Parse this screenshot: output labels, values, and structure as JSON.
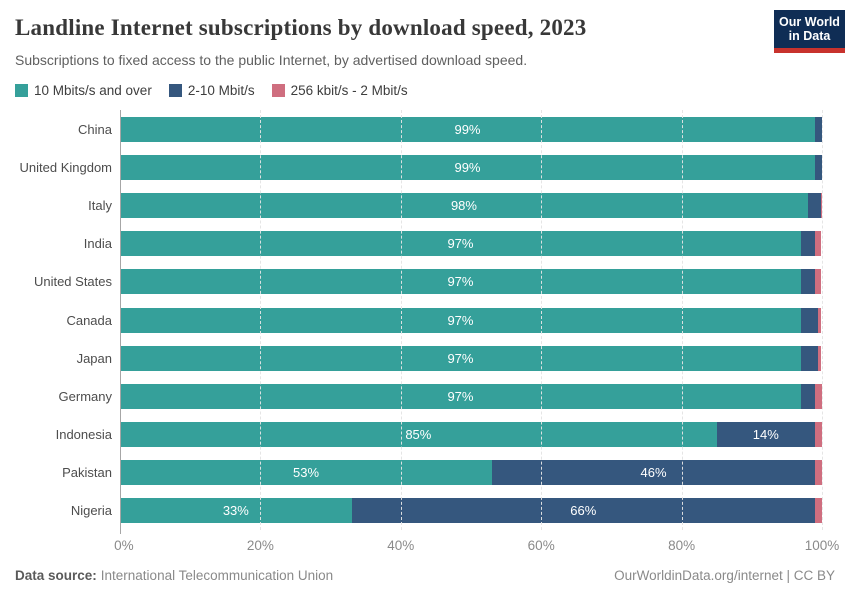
{
  "logo": {
    "line1": "Our World",
    "line2": "in Data",
    "bg": "#0f2d55",
    "stripe": "#c8322d"
  },
  "chart_data": {
    "type": "bar",
    "orientation": "horizontal",
    "stacked": true,
    "title": "Landline Internet subscriptions by download speed, 2023",
    "subtitle": "Subscriptions to fixed access to the public Internet, by advertised download speed.",
    "unit": "%",
    "xlim": [
      0,
      100
    ],
    "xticks": [
      "0%",
      "20%",
      "40%",
      "60%",
      "80%",
      "100%"
    ],
    "grid": true,
    "legend_position": "top-left",
    "legend": [
      {
        "label": "10 Mbits/s and over",
        "color": "#35a09a"
      },
      {
        "label": "2-10 Mbit/s",
        "color": "#35577e"
      },
      {
        "label": "256 kbit/s - 2 Mbit/s",
        "color": "#cf6e7f"
      }
    ],
    "rows": [
      {
        "country": "China",
        "segments": [
          {
            "value": 99,
            "label": "99%"
          },
          {
            "value": 1,
            "label": ""
          },
          {
            "value": 0,
            "label": ""
          }
        ]
      },
      {
        "country": "United Kingdom",
        "segments": [
          {
            "value": 99,
            "label": "99%"
          },
          {
            "value": 1,
            "label": ""
          },
          {
            "value": 0,
            "label": ""
          }
        ]
      },
      {
        "country": "Italy",
        "segments": [
          {
            "value": 98,
            "label": "98%"
          },
          {
            "value": 1.8,
            "label": ""
          },
          {
            "value": 0.2,
            "label": ""
          }
        ]
      },
      {
        "country": "India",
        "segments": [
          {
            "value": 97,
            "label": "97%"
          },
          {
            "value": 2,
            "label": ""
          },
          {
            "value": 0.8,
            "label": ""
          }
        ]
      },
      {
        "country": "United States",
        "segments": [
          {
            "value": 97,
            "label": "97%"
          },
          {
            "value": 2,
            "label": ""
          },
          {
            "value": 0.8,
            "label": ""
          }
        ]
      },
      {
        "country": "Canada",
        "segments": [
          {
            "value": 97,
            "label": "97%"
          },
          {
            "value": 2.5,
            "label": ""
          },
          {
            "value": 0.4,
            "label": ""
          }
        ]
      },
      {
        "country": "Japan",
        "segments": [
          {
            "value": 97,
            "label": "97%"
          },
          {
            "value": 2.5,
            "label": ""
          },
          {
            "value": 0.4,
            "label": ""
          }
        ]
      },
      {
        "country": "Germany",
        "segments": [
          {
            "value": 97,
            "label": "97%"
          },
          {
            "value": 2,
            "label": ""
          },
          {
            "value": 1,
            "label": ""
          }
        ]
      },
      {
        "country": "Indonesia",
        "segments": [
          {
            "value": 85,
            "label": "85%"
          },
          {
            "value": 14,
            "label": "14%"
          },
          {
            "value": 1,
            "label": ""
          }
        ]
      },
      {
        "country": "Pakistan",
        "segments": [
          {
            "value": 53,
            "label": "53%"
          },
          {
            "value": 46,
            "label": "46%"
          },
          {
            "value": 1,
            "label": ""
          }
        ]
      },
      {
        "country": "Nigeria",
        "segments": [
          {
            "value": 33,
            "label": "33%"
          },
          {
            "value": 66,
            "label": "66%"
          },
          {
            "value": 1,
            "label": ""
          }
        ]
      }
    ]
  },
  "footer": {
    "source_label": "Data source:",
    "source_value": "International Telecommunication Union",
    "credit": "OurWorldinData.org/internet | CC BY"
  }
}
